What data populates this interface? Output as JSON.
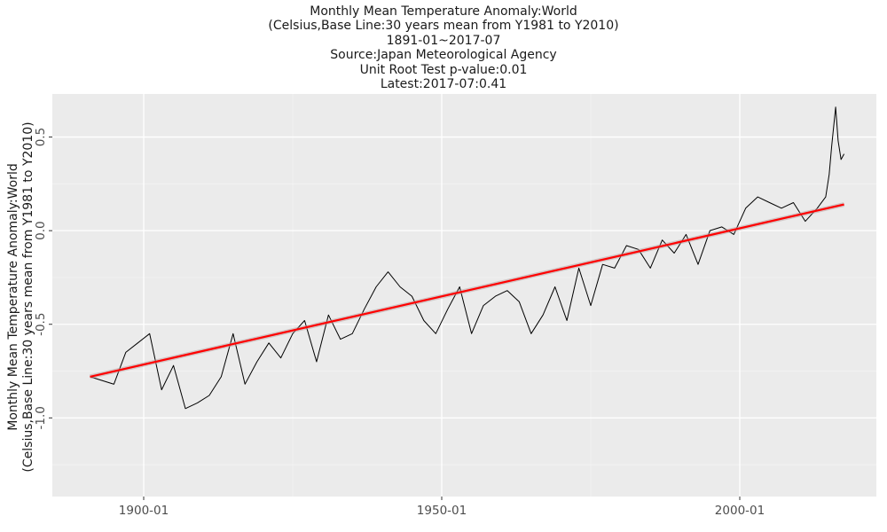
{
  "chart_data": {
    "type": "line",
    "title_lines": [
      "Monthly Mean Temperature Anomaly:World",
      "(Celsius,Base Line:30 years mean from Y1981 to Y2010)",
      "1891-01~2017-07",
      "Source:Japan Meteorological Agency",
      "Unit Root Test p-value:0.01",
      "Latest:2017-07:0.41"
    ],
    "ylabel_lines": [
      "Monthly Mean Temperature Anomaly:World",
      "(Celsius,Base Line:30 years mean from Y1981 to Y2010)"
    ],
    "xlabel": "",
    "x_range": [
      "1891-01",
      "2017-07"
    ],
    "x_ticks": [
      {
        "label": "1900-01",
        "year": 1900
      },
      {
        "label": "1950-01",
        "year": 1950
      },
      {
        "label": "2000-01",
        "year": 2000
      }
    ],
    "ylim": [
      -1.42,
      0.73
    ],
    "y_ticks": [
      -1.0,
      -0.5,
      0.0,
      0.5
    ],
    "y_tick_labels": [
      "-1.0",
      "-0.5",
      "0.0",
      "0.5"
    ],
    "grid": true,
    "series": [
      {
        "name": "",
        "color": "#000000",
        "x": [
          "1891-01",
          "1893-01",
          "1895-01",
          "1897-01",
          "1899-01",
          "1901-01",
          "1903-01",
          "1905-01",
          "1907-01",
          "1909-01",
          "1911-01",
          "1913-01",
          "1915-01",
          "1917-01",
          "1919-01",
          "1921-01",
          "1923-01",
          "1925-01",
          "1927-01",
          "1929-01",
          "1931-01",
          "1933-01",
          "1935-01",
          "1937-01",
          "1939-01",
          "1941-01",
          "1943-01",
          "1945-01",
          "1947-01",
          "1949-01",
          "1951-01",
          "1953-01",
          "1955-01",
          "1957-01",
          "1959-01",
          "1961-01",
          "1963-01",
          "1965-01",
          "1967-01",
          "1969-01",
          "1971-01",
          "1973-01",
          "1975-01",
          "1977-01",
          "1979-01",
          "1981-01",
          "1983-01",
          "1985-01",
          "1987-01",
          "1989-01",
          "1991-01",
          "1993-01",
          "1995-01",
          "1997-01",
          "1999-01",
          "2001-01",
          "2003-01",
          "2005-01",
          "2007-01",
          "2009-01",
          "2011-01",
          "2013-01",
          "2014-06",
          "2015-01",
          "2015-06",
          "2016-02",
          "2016-07",
          "2017-01",
          "2017-07"
        ],
        "values": [
          -0.78,
          -0.8,
          -0.82,
          -0.65,
          -0.6,
          -0.55,
          -0.85,
          -0.72,
          -0.95,
          -0.92,
          -0.88,
          -0.78,
          -0.55,
          -0.82,
          -0.7,
          -0.6,
          -0.68,
          -0.55,
          -0.48,
          -0.7,
          -0.45,
          -0.58,
          -0.55,
          -0.42,
          -0.3,
          -0.22,
          -0.3,
          -0.35,
          -0.48,
          -0.55,
          -0.42,
          -0.3,
          -0.55,
          -0.4,
          -0.35,
          -0.32,
          -0.38,
          -0.55,
          -0.45,
          -0.3,
          -0.48,
          -0.2,
          -0.4,
          -0.18,
          -0.2,
          -0.08,
          -0.1,
          -0.2,
          -0.05,
          -0.12,
          -0.02,
          -0.18,
          0.0,
          0.02,
          -0.02,
          0.12,
          0.18,
          0.15,
          0.12,
          0.15,
          0.05,
          0.12,
          0.18,
          0.3,
          0.45,
          0.66,
          0.48,
          0.38,
          0.41
        ]
      },
      {
        "name": "",
        "color": "#ff0000",
        "x": [
          "1891-01",
          "2017-07"
        ],
        "values": [
          -0.78,
          0.14
        ]
      }
    ]
  }
}
